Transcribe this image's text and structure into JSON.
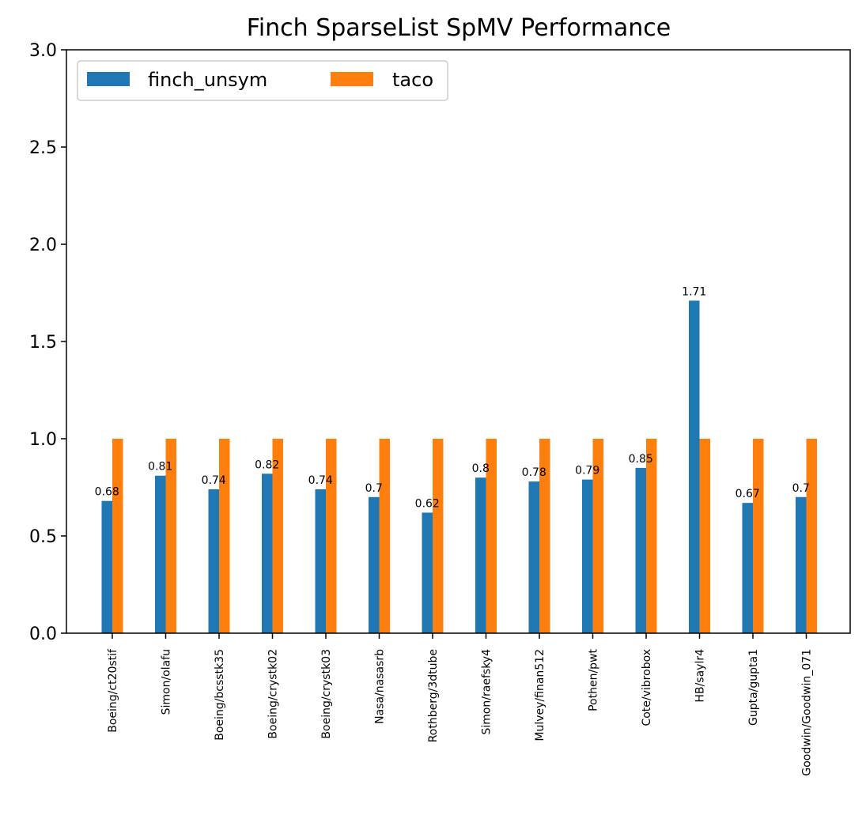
{
  "chart_data": {
    "type": "bar",
    "title": "Finch SparseList SpMV Performance",
    "xlabel": "",
    "ylabel": "",
    "ylim": [
      0,
      3.0
    ],
    "yticks": [
      "0.0",
      "0.5",
      "1.0",
      "1.5",
      "2.0",
      "2.5",
      "3.0"
    ],
    "categories": [
      "Boeing/ct20stif",
      "Simon/olafu",
      "Boeing/bcsstk35",
      "Boeing/crystk02",
      "Boeing/crystk03",
      "Nasa/nasasrb",
      "Rothberg/3dtube",
      "Simon/raefsky4",
      "Mulvey/finan512",
      "Pothen/pwt",
      "Cote/vibrobox",
      "HB/saylr4",
      "Gupta/gupta1",
      "Goodwin/Goodwin_071"
    ],
    "series": [
      {
        "name": "finch_unsym",
        "color": "#1f77b4",
        "values": [
          0.68,
          0.81,
          0.74,
          0.82,
          0.74,
          0.7,
          0.62,
          0.8,
          0.78,
          0.79,
          0.85,
          1.71,
          0.67,
          0.7
        ],
        "labels": [
          "0.68",
          "0.81",
          "0.74",
          "0.82",
          "0.74",
          "0.7",
          "0.62",
          "0.8",
          "0.78",
          "0.79",
          "0.85",
          "1.71",
          "0.67",
          "0.7"
        ]
      },
      {
        "name": "taco",
        "color": "#ff7f0e",
        "values": [
          1,
          1,
          1,
          1,
          1,
          1,
          1,
          1,
          1,
          1,
          1,
          1,
          1,
          1
        ]
      }
    ],
    "legend": "top-left",
    "grid": false
  }
}
